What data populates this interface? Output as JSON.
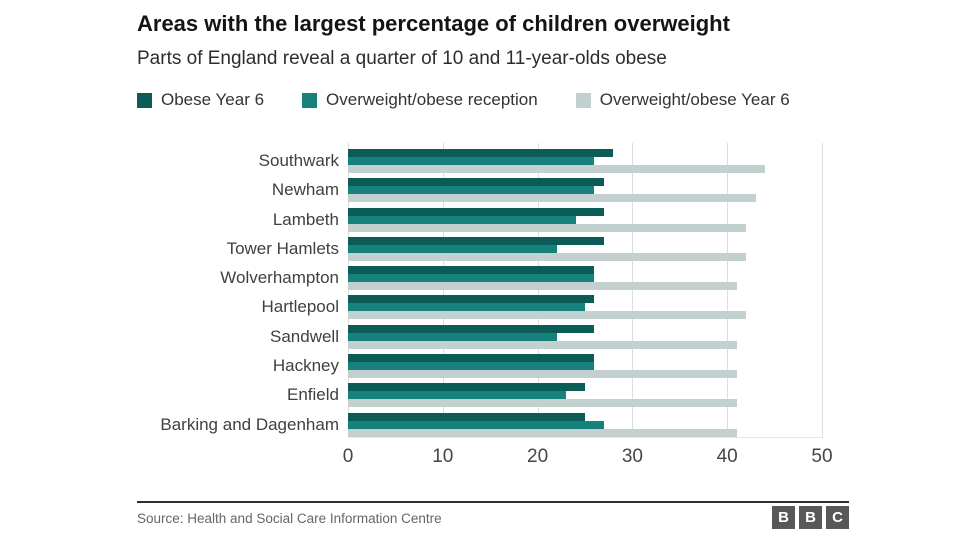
{
  "header": {
    "title": "Areas with the largest percentage of children overweight",
    "subtitle": "Parts of England reveal a quarter of 10 and 11-year-olds obese"
  },
  "chart_data": {
    "type": "bar",
    "orientation": "horizontal",
    "title": "Areas with the largest percentage of children overweight",
    "subtitle": "Parts of England reveal a quarter of 10 and 11-year-olds obese",
    "unit": "percent",
    "categories": [
      "Southwark",
      "Newham",
      "Lambeth",
      "Tower Hamlets",
      "Wolverhampton",
      "Hartlepool",
      "Sandwell",
      "Hackney",
      "Enfield",
      "Barking and Dagenham"
    ],
    "series": [
      {
        "name": "Obese Year 6",
        "color": "#0b5c57",
        "values": [
          28,
          27,
          27,
          27,
          26,
          26,
          26,
          26,
          25,
          25
        ]
      },
      {
        "name": "Overweight/obese reception",
        "color": "#17827c",
        "values": [
          26,
          26,
          24,
          22,
          26,
          25,
          22,
          26,
          23,
          27
        ]
      },
      {
        "name": "Overweight/obese Year 6",
        "color": "#c2d1cf",
        "values": [
          44,
          43,
          42,
          42,
          41,
          42,
          41,
          41,
          41,
          41
        ]
      }
    ],
    "xlim": [
      0,
      50
    ],
    "x_ticks": [
      0,
      10,
      20,
      30,
      40,
      50
    ],
    "grid": "vertical-only",
    "legend_position": "top"
  },
  "colors": {
    "gridline": "#dbe0df",
    "baseline": "#e3e6e5",
    "axis_text": "#454545",
    "bbc_block": "#58585a"
  },
  "footer": {
    "source": "Source: Health and Social Care Information Centre",
    "logo_letters": [
      "B",
      "B",
      "C"
    ]
  }
}
